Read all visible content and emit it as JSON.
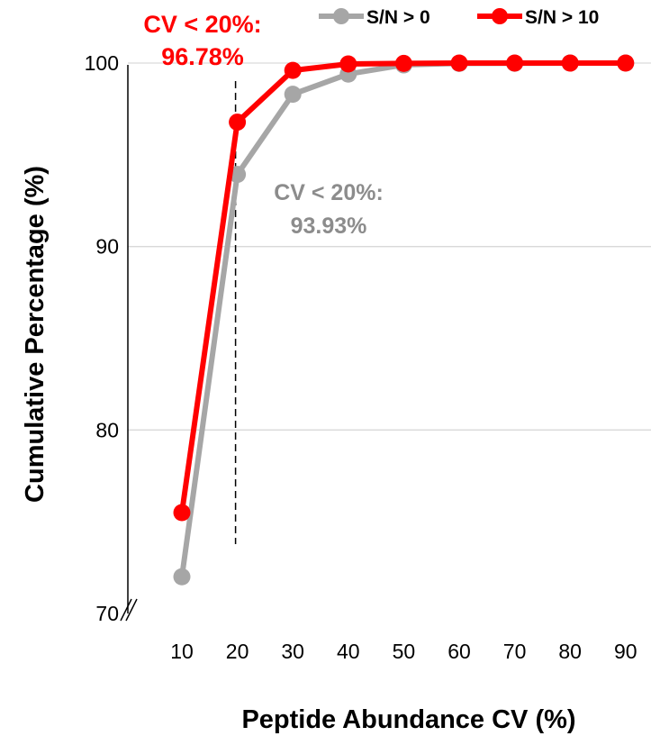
{
  "chart_data": {
    "type": "line",
    "ylabel": "Cumulative Percentage (%)",
    "xlabel": "Peptide Abundance CV (%)",
    "x": [
      10,
      20,
      30,
      40,
      50,
      60,
      70,
      80,
      90
    ],
    "x_tick_labels": [
      "10",
      "20",
      "30",
      "40",
      "50",
      "60",
      "70",
      "80",
      "90"
    ],
    "y_tick_labels": [
      "70",
      "80",
      "90",
      "100"
    ],
    "ylim": [
      70,
      100
    ],
    "y_axis_break": true,
    "grid": "horizontal",
    "legend": "top",
    "reference_line_x": 20,
    "series": [
      {
        "name": "S/N > 0",
        "color": "#a6a6a6",
        "values": [
          72.0,
          93.93,
          98.3,
          99.4,
          99.9,
          99.98,
          99.99,
          100,
          100
        ]
      },
      {
        "name": "S/N > 10",
        "color": "#ff0000",
        "values": [
          75.5,
          96.78,
          99.6,
          99.95,
          99.98,
          100,
          100,
          100,
          100
        ]
      }
    ],
    "annotations": [
      {
        "line1": "CV < 20%:",
        "line2": "96.78%",
        "color": "#ff0000"
      },
      {
        "line1": "CV < 20%:",
        "line2": "93.93%",
        "color": "#8c8c8c"
      }
    ]
  }
}
